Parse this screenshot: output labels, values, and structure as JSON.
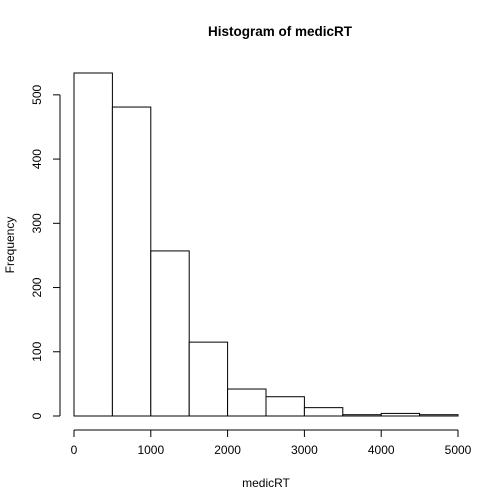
{
  "chart_data": {
    "type": "bar",
    "title": "Histogram of medicRT",
    "xlabel": "medicRT",
    "ylabel": "Frequency",
    "bin_edges": [
      0,
      500,
      1000,
      1500,
      2000,
      2500,
      3000,
      3500,
      4000,
      4500,
      5000
    ],
    "values": [
      534,
      481,
      257,
      115,
      42,
      30,
      13,
      2,
      4,
      2
    ],
    "xlim": [
      0,
      5000
    ],
    "ylim": [
      0,
      534
    ],
    "x_ticks": [
      0,
      1000,
      2000,
      3000,
      4000,
      5000
    ],
    "y_ticks": [
      0,
      100,
      200,
      300,
      400,
      500
    ],
    "grid": false,
    "legend": "none"
  }
}
